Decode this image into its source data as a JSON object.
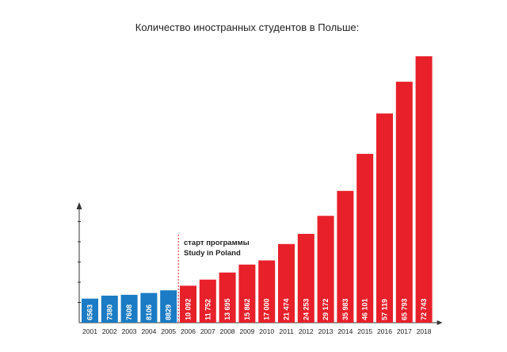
{
  "chart_data": {
    "type": "bar",
    "title": "Количество иностранных студентов в Польше:",
    "categories": [
      "2001",
      "2002",
      "2003",
      "2004",
      "2005",
      "2006",
      "2007",
      "2008",
      "2009",
      "2010",
      "2011",
      "2012",
      "2013",
      "2014",
      "2015",
      "2016",
      "2017",
      "2018"
    ],
    "values": [
      6563,
      7380,
      7608,
      8106,
      8829,
      10092,
      11752,
      13695,
      15862,
      17000,
      21474,
      24253,
      29172,
      35983,
      46101,
      57119,
      65793,
      72743
    ],
    "value_labels": [
      "6563",
      "7380",
      "7608",
      "8106",
      "8829",
      "10 092",
      "11 752",
      "13 695",
      "15 862",
      "17 000",
      "21 474",
      "24 253",
      "29 172",
      "35 983",
      "46 101",
      "57 119",
      "65 793",
      "72 743"
    ],
    "ylim": [
      0,
      72743
    ],
    "grid": false,
    "colors": {
      "before_program": "#1b7bc4",
      "after_program": "#e8202a",
      "axis": "#333333",
      "annotation_line": "#e8202a"
    },
    "annotation": {
      "lines": [
        "старт программы",
        "Study in Poland"
      ],
      "after_category": "2005"
    }
  }
}
